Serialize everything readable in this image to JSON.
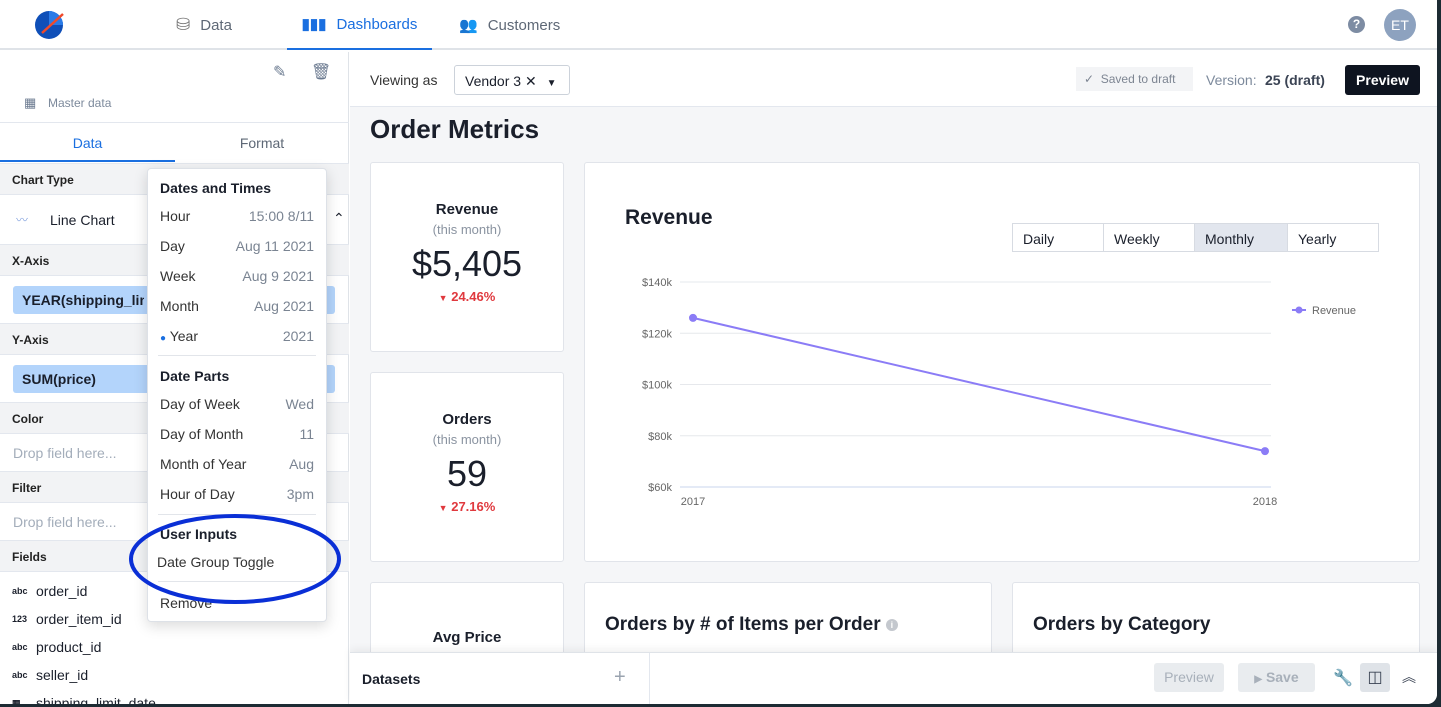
{
  "nav": {
    "items": [
      {
        "label": "Data",
        "icon": "database-icon"
      },
      {
        "label": "Dashboards",
        "icon": "bar-chart-icon",
        "active": true
      },
      {
        "label": "Customers",
        "icon": "users-icon"
      }
    ],
    "help_icon": "question-circle-icon",
    "avatar": "ET"
  },
  "sidebar": {
    "source": "Master data",
    "tabs": [
      "Data",
      "Format"
    ],
    "chart_type_label": "Chart Type",
    "chart_type": "Line Chart",
    "x_axis_label": "X-Axis",
    "x_axis_value": "YEAR(shipping_limit_date)",
    "y_axis_label": "Y-Axis",
    "y_axis_value": "SUM(price)",
    "color_label": "Color",
    "filter_label": "Filter",
    "drop_placeholder": "Drop field here...",
    "fields_label": "Fields",
    "fields": [
      {
        "type": "abc",
        "name": "order_id"
      },
      {
        "type": "123",
        "name": "order_item_id"
      },
      {
        "type": "abc",
        "name": "product_id"
      },
      {
        "type": "abc",
        "name": "seller_id"
      },
      {
        "type": "date",
        "name": "shipping_limit_date"
      }
    ]
  },
  "menu": {
    "dates_header": "Dates and Times",
    "dates": [
      {
        "label": "Hour",
        "value": "15:00 8/11"
      },
      {
        "label": "Day",
        "value": "Aug 11 2021"
      },
      {
        "label": "Week",
        "value": "Aug 9 2021"
      },
      {
        "label": "Month",
        "value": "Aug 2021"
      },
      {
        "label": "Year",
        "value": "2021",
        "selected": true
      }
    ],
    "parts_header": "Date Parts",
    "parts": [
      {
        "label": "Day of Week",
        "value": "Wed"
      },
      {
        "label": "Day of Month",
        "value": "11"
      },
      {
        "label": "Month of Year",
        "value": "Aug"
      },
      {
        "label": "Hour of Day",
        "value": "3pm"
      }
    ],
    "inputs_header": "User Inputs",
    "inputs": [
      "Date Group Toggle"
    ],
    "remove": "Remove",
    "highlight_color": "#0a2fd6"
  },
  "toolbar": {
    "viewing_as": "Viewing as",
    "viewer": "Vendor 3",
    "saved": "Saved to draft",
    "version_label": "Version:",
    "version": "25 (draft)",
    "preview": "Preview"
  },
  "dashboard": {
    "title": "Order Metrics",
    "kpis": [
      {
        "title": "Revenue",
        "sub": "(this month)",
        "value": "$5,405",
        "change": "24.46%"
      },
      {
        "title": "Orders",
        "sub": "(this month)",
        "value": "59",
        "change": "27.16%"
      },
      {
        "title": "Avg Price"
      }
    ],
    "cards": [
      "Orders by # of Items per Order",
      "Orders by Category"
    ]
  },
  "chart_data": {
    "type": "line",
    "title": "Revenue",
    "toggle": [
      "Daily",
      "Weekly",
      "Monthly",
      "Yearly"
    ],
    "toggle_selected": "Monthly",
    "x": [
      "2017",
      "2018"
    ],
    "series": [
      {
        "name": "Revenue",
        "values": [
          126000,
          74000
        ],
        "color": "#8b7cf6"
      }
    ],
    "ylim": [
      60000,
      140000
    ],
    "yticks": [
      "$60k",
      "$80k",
      "$100k",
      "$120k",
      "$140k"
    ],
    "grid": true,
    "legend": "right"
  },
  "bottom": {
    "datasets": "Datasets",
    "add": "+",
    "preview": "Preview",
    "save": "Save"
  }
}
